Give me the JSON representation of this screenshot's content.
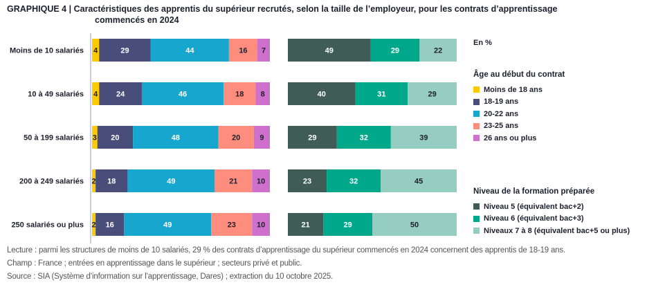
{
  "chart_data": {
    "type": "bar",
    "orientation": "horizontal-stacked-100",
    "title_prefix": "GRAPHIQUE 4 |",
    "title_line1": "Caractéristiques des apprentis du supérieur recrutés, selon la taille de l’employeur, pour les contrats d’apprentissage",
    "title_line2": "commencés en 2024",
    "unit": "En %",
    "categories": [
      "Moins de 10 salariés",
      "10 à 49 salariés",
      "50 à 199 salariés",
      "200 à 249 salariés",
      "250 salariés ou plus"
    ],
    "panels": [
      {
        "name": "age",
        "legend_title": "Âge au début du contrat",
        "series": [
          {
            "name": "Moins de 18 ans",
            "color": "#ffca00",
            "label_color": "#1e1e2e",
            "values": [
              4,
              4,
              3,
              2,
              2
            ]
          },
          {
            "name": "18-19 ans",
            "color": "#484d7a",
            "label_color": "#ffffff",
            "values": [
              29,
              24,
              20,
              18,
              16
            ]
          },
          {
            "name": "20-22 ans",
            "color": "#17a6ce",
            "label_color": "#ffffff",
            "values": [
              44,
              46,
              48,
              49,
              49
            ]
          },
          {
            "name": "23-25 ans",
            "color": "#ff8d7e",
            "label_color": "#1e1e2e",
            "values": [
              16,
              18,
              20,
              21,
              23
            ]
          },
          {
            "name": "26 ans ou plus",
            "color": "#ce70cc",
            "label_color": "#1e1e2e",
            "values": [
              7,
              8,
              9,
              10,
              10
            ]
          }
        ]
      },
      {
        "name": "niveau",
        "legend_title": "Niveau de la formation préparée",
        "series": [
          {
            "name": "Niveau 5 (équivalent bac+2)",
            "color": "#3f5d56",
            "label_color": "#ffffff",
            "values": [
              49,
              40,
              29,
              23,
              21
            ]
          },
          {
            "name": "Niveau 6 (équivalent bac+3)",
            "color": "#00a88b",
            "label_color": "#ffffff",
            "values": [
              29,
              31,
              32,
              32,
              29
            ]
          },
          {
            "name": "Niveaux 7 à 8 (équivalent bac+5 ou plus)",
            "color": "#95cdc0",
            "label_color": "#1e1e2e",
            "values": [
              22,
              29,
              39,
              45,
              50
            ]
          }
        ]
      }
    ],
    "xlim": [
      0,
      100
    ]
  },
  "notes": {
    "lecture": "Lecture : parmi les structures de moins de 10 salariés, 29 % des contrats d’apprentissage du supérieur commencés en 2024 concernent des apprentis de 18-19 ans.",
    "champ": "Champ : France ; entrées en apprentissage dans le supérieur ; secteurs privé et public.",
    "source": "Source : SIA (Système d’information sur l’apprentissage, Dares) ; extraction du 10 octobre 2025."
  }
}
